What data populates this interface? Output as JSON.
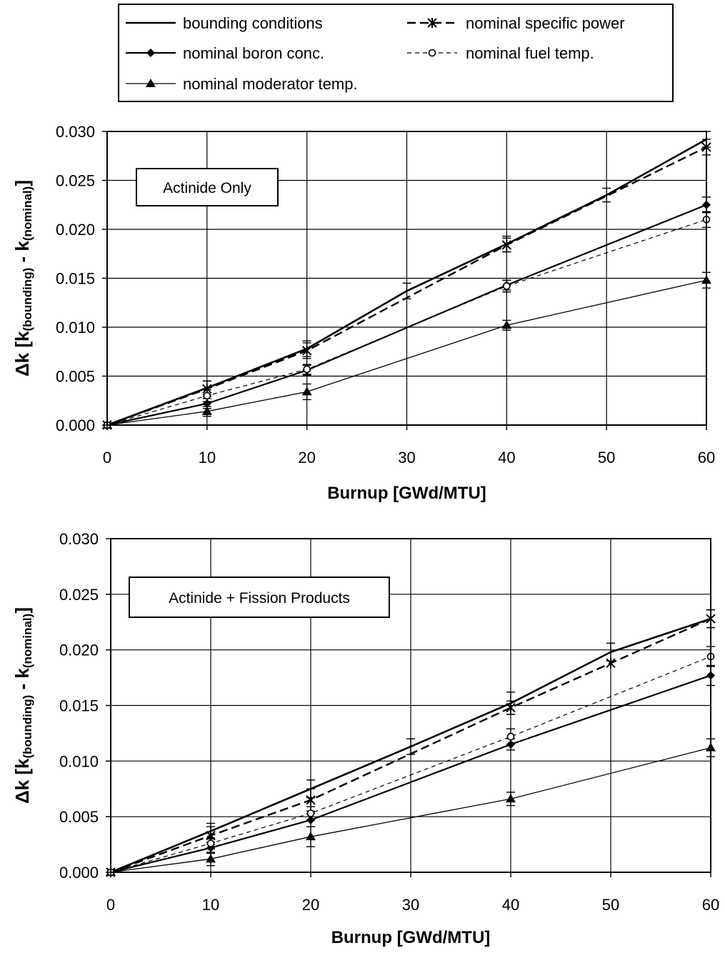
{
  "legend": {
    "entries": [
      {
        "label": "bounding conditions",
        "series": 0
      },
      {
        "label": "nominal boron conc.",
        "series": 1
      },
      {
        "label": "nominal moderator temp.",
        "series": 2
      },
      {
        "label": "nominal specific power",
        "series": 3
      },
      {
        "label": "nominal fuel temp.",
        "series": 4
      }
    ]
  },
  "style": {
    "line_color": "#000000",
    "grid_color": "#000000"
  },
  "chart_data": [
    {
      "type": "line",
      "annotation": "Actinide Only",
      "xlabel": "Burnup [GWd/MTU]",
      "ylabel": {
        "prefix": "Δk [k",
        "sub1": "(bounding)",
        "mid": " - k",
        "sub2": "(nominal)",
        "suffix": "]"
      },
      "xlim": [
        0,
        60
      ],
      "ylim": [
        0,
        0.03
      ],
      "xticks": [
        "0",
        "10",
        "20",
        "30",
        "40",
        "50",
        "60"
      ],
      "yticks": [
        "0.000",
        "0.005",
        "0.010",
        "0.015",
        "0.020",
        "0.025",
        "0.030"
      ],
      "grid": true,
      "series": [
        {
          "name": "bounding conditions",
          "marker": "none",
          "dash": "solid",
          "width": 2.6,
          "x": [
            0,
            10,
            20,
            30,
            40,
            50,
            60
          ],
          "y": [
            0,
            0.0038,
            0.0078,
            0.0137,
            0.0185,
            0.0235,
            0.0292
          ],
          "err": [
            0,
            0.0007,
            0.0008,
            0.0008,
            0.0008,
            0.0007,
            0.0008
          ]
        },
        {
          "name": "nominal boron conc.",
          "marker": "diamond",
          "dash": "solid",
          "width": 2.2,
          "x": [
            0,
            10,
            20,
            40,
            60
          ],
          "y": [
            0,
            0.0022,
            0.0056,
            0.0143,
            0.0225
          ],
          "err": [
            0,
            0.0005,
            0.0005,
            0.0005,
            0.0008
          ]
        },
        {
          "name": "nominal moderator temp.",
          "marker": "triangle",
          "dash": "solid",
          "width": 1.3,
          "x": [
            0,
            10,
            20,
            40,
            60
          ],
          "y": [
            0,
            0.0014,
            0.0034,
            0.0102,
            0.0148
          ],
          "err": [
            0,
            0.0005,
            0.0008,
            0.0005,
            0.0008
          ]
        },
        {
          "name": "nominal specific power",
          "marker": "asterisk",
          "dash": "dashed",
          "width": 2.4,
          "x": [
            0,
            10,
            20,
            40,
            60
          ],
          "y": [
            0,
            0.0037,
            0.0076,
            0.0184,
            0.0284
          ],
          "err": [
            0,
            0.0008,
            0.0008,
            0.0007,
            0.0008
          ]
        },
        {
          "name": "nominal fuel temp.",
          "marker": "circle",
          "dash": "dotted",
          "width": 1.2,
          "x": [
            0,
            10,
            20,
            40,
            60
          ],
          "y": [
            0,
            0.003,
            0.0057,
            0.0142,
            0.021
          ],
          "err": [
            0,
            0.0006,
            0.0005,
            0.0006,
            0.0008
          ]
        }
      ]
    },
    {
      "type": "line",
      "annotation": "Actinide + Fission Products",
      "xlabel": "Burnup [GWd/MTU]",
      "ylabel": {
        "prefix": "Δk [k",
        "sub1": "(bounding)",
        "mid": " - k",
        "sub2": "(nominal)",
        "suffix": "]"
      },
      "xlim": [
        0,
        60
      ],
      "ylim": [
        0,
        0.03
      ],
      "xticks": [
        "0",
        "10",
        "20",
        "30",
        "40",
        "50",
        "60"
      ],
      "yticks": [
        "0.000",
        "0.005",
        "0.010",
        "0.015",
        "0.020",
        "0.025",
        "0.030"
      ],
      "grid": true,
      "series": [
        {
          "name": "bounding conditions",
          "marker": "none",
          "dash": "solid",
          "width": 2.6,
          "x": [
            0,
            10,
            20,
            30,
            40,
            50,
            60
          ],
          "y": [
            0,
            0.0037,
            0.0075,
            0.0113,
            0.0152,
            0.0198,
            0.0228
          ],
          "err": [
            0,
            0.0007,
            0.0008,
            0.0007,
            0.001,
            0.0008,
            0.0008
          ]
        },
        {
          "name": "nominal boron conc.",
          "marker": "diamond",
          "dash": "solid",
          "width": 2.2,
          "x": [
            0,
            10,
            20,
            40,
            60
          ],
          "y": [
            0,
            0.0022,
            0.0047,
            0.0115,
            0.0177
          ],
          "err": [
            0,
            0.0005,
            0.0006,
            0.0005,
            0.0009
          ]
        },
        {
          "name": "nominal moderator temp.",
          "marker": "triangle",
          "dash": "solid",
          "width": 1.3,
          "x": [
            0,
            10,
            20,
            40,
            60
          ],
          "y": [
            0,
            0.0012,
            0.0032,
            0.0066,
            0.0112
          ],
          "err": [
            0,
            0.0006,
            0.0009,
            0.0006,
            0.0008
          ]
        },
        {
          "name": "nominal specific power",
          "marker": "asterisk",
          "dash": "dashed",
          "width": 2.4,
          "x": [
            0,
            10,
            20,
            40,
            50,
            60
          ],
          "y": [
            0,
            0.0033,
            0.0065,
            0.0148,
            0.0188,
            0.0228
          ],
          "err": [
            0,
            0.0008,
            0.001,
            0.0006,
            0.0,
            0.0008
          ]
        },
        {
          "name": "nominal fuel temp.",
          "marker": "circle",
          "dash": "dotted",
          "width": 1.2,
          "x": [
            0,
            10,
            20,
            40,
            60
          ],
          "y": [
            0,
            0.0026,
            0.0053,
            0.0122,
            0.0194
          ],
          "err": [
            0,
            0.0005,
            0.0006,
            0.0007,
            0.0009
          ]
        }
      ]
    }
  ]
}
